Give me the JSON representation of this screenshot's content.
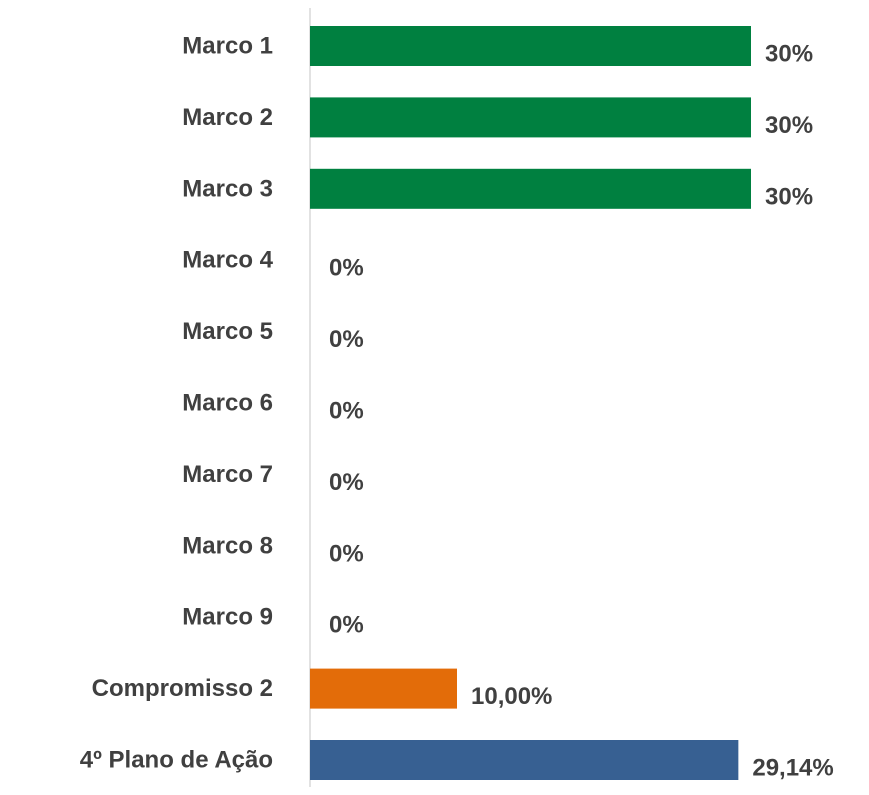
{
  "chart_data": {
    "type": "bar",
    "orientation": "horizontal",
    "categories": [
      "Marco 1",
      "Marco 2",
      "Marco 3",
      "Marco 4",
      "Marco 5",
      "Marco 6",
      "Marco 7",
      "Marco 8",
      "Marco 9",
      "Compromisso 2",
      "4º Plano de Ação"
    ],
    "values": [
      30,
      30,
      30,
      0,
      0,
      0,
      0,
      0,
      0,
      10,
      29.14
    ],
    "value_labels": [
      "30%",
      "30%",
      "30%",
      "0%",
      "0%",
      "0%",
      "0%",
      "0%",
      "0%",
      "10,00%",
      "29,14%"
    ],
    "colors": [
      "#008040",
      "#008040",
      "#008040",
      "#008040",
      "#008040",
      "#008040",
      "#008040",
      "#008040",
      "#008040",
      "#E36C09",
      "#376092"
    ],
    "xlim": [
      0,
      30
    ],
    "grid": false,
    "legend": false,
    "title": "",
    "xlabel": "",
    "ylabel": ""
  }
}
